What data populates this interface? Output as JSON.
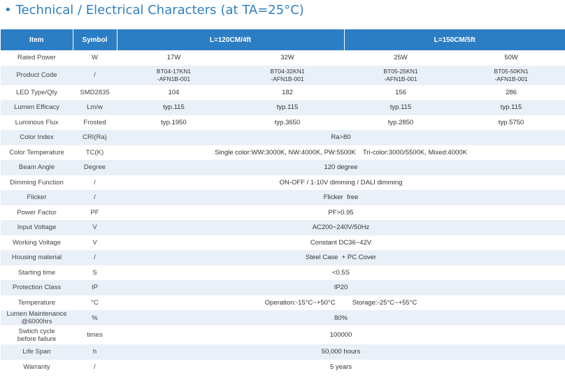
{
  "title": {
    "bullet": "•",
    "text": "Technical / Electrical Characters",
    "condition": "(at TA=25°C)"
  },
  "header": {
    "item": "Item",
    "symbol": "Symbol",
    "group1": "L=120CM/4ft",
    "group2": "L=150CM/5ft"
  },
  "rows": {
    "rated_power": {
      "item": "Rated Power",
      "symbol": "W",
      "values": [
        "17W",
        "32W",
        "25W",
        "50W"
      ]
    },
    "product_code": {
      "item": "Product Code",
      "symbol": "/",
      "values": [
        [
          "BT04-17KN1",
          "-AFN1B-001"
        ],
        [
          "BT04-32KN1",
          "-AFN1B-001"
        ],
        [
          "BT05-25KN1",
          "-AFN1B-001"
        ],
        [
          "BT05-50KN1",
          "-AFN1B-001"
        ]
      ]
    },
    "led_type": {
      "item": "LED Type/Qty",
      "symbol": "SMD2835",
      "values": [
        "104",
        "182",
        "156",
        "286"
      ]
    },
    "lumen_efficacy": {
      "item": "Lumen Efficacy",
      "symbol": "Lm/w",
      "values": [
        "typ.115",
        "typ.115",
        "typ.115",
        "typ.115"
      ]
    },
    "luminous_flux": {
      "item": "Luminous Flux",
      "symbol": "Frosted",
      "values": [
        "typ.1950",
        "typ.3650",
        "typ.2850",
        "typ.5750"
      ]
    },
    "color_index": {
      "item": "Color Index",
      "symbol": "CRI(Ra)",
      "value": "Ra>80"
    },
    "color_temperature": {
      "item": "Color Temperature",
      "symbol": "TC(K)",
      "value_a": "Single color:WW:3000K, NW:4000K, PW:5500K",
      "value_b": "Tri-color:3000/5500K, Mixed:4000K"
    },
    "beam_angle": {
      "item": "Beam Angle",
      "symbol": "Degree",
      "value": "120 degree"
    },
    "dimming": {
      "item": "Dimming Function",
      "symbol": "/",
      "value": "ON-OFF / 1-10V dimming / DALI dimming"
    },
    "flicker": {
      "item": "Flicker",
      "symbol": "/",
      "value": "Flicker  free"
    },
    "power_factor": {
      "item": "Power Factor",
      "symbol": "PF",
      "value": "PF>0.95"
    },
    "input_voltage": {
      "item": "Input Voltage",
      "symbol": "V",
      "value": "AC200~240V/50Hz"
    },
    "working_voltage": {
      "item": "Working Voltage",
      "symbol": "V",
      "value": "Constant DC36~42V"
    },
    "housing": {
      "item": "Housing material",
      "symbol": "/",
      "value": "Steel Case  + PC Cover"
    },
    "starting_time": {
      "item": "Starting time",
      "symbol": "S",
      "value": "<0.5S"
    },
    "protection": {
      "item": "Protection Class",
      "symbol": "IP",
      "value": "IP20"
    },
    "temperature": {
      "item": "Temperature",
      "symbol": "°C",
      "value_a": "Operation:-15°C~+50°C",
      "value_b": "Storage:-25°C~+55°C"
    },
    "lumen_maintenance": {
      "item_a": "Lumen Maintenance",
      "item_b": "@6000hrs",
      "symbol": "%",
      "value": "80%"
    },
    "switch_cycle": {
      "item_a": "Swtich cycle",
      "item_b": "before failure",
      "symbol": "times",
      "value": "100000"
    },
    "life_span": {
      "item": "Life Span",
      "symbol": "h",
      "value": "50,000 hours"
    },
    "warranty": {
      "item": "Warranty",
      "symbol": "/",
      "value": "5 years"
    }
  }
}
